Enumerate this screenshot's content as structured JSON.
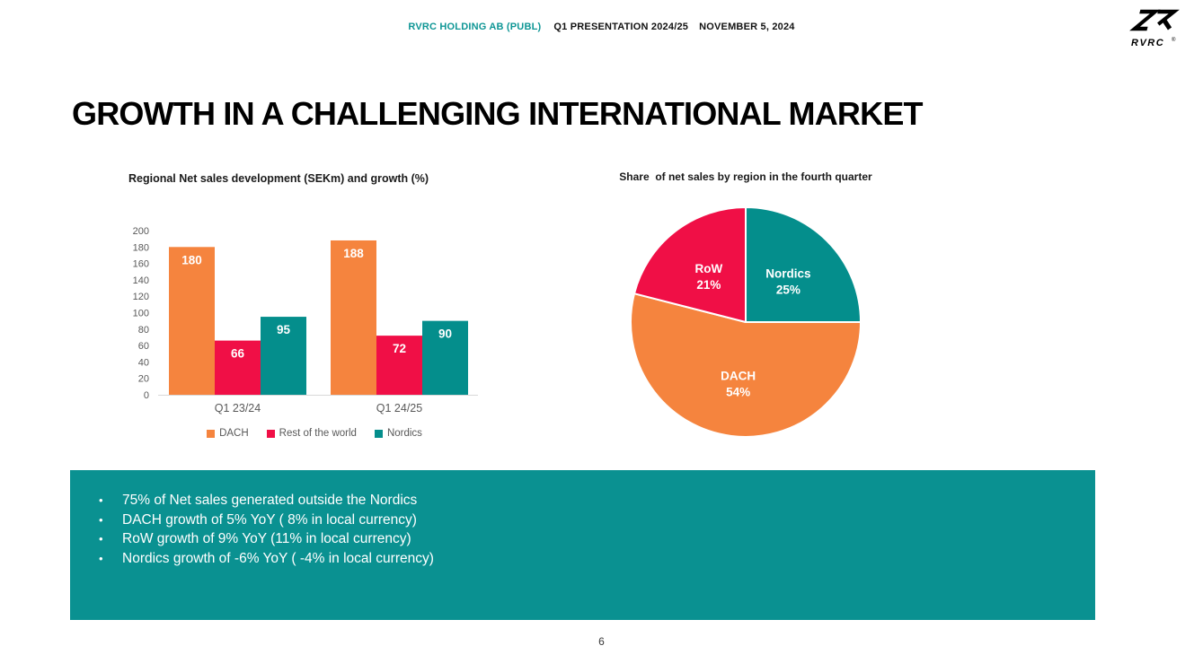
{
  "header": {
    "company": "RVRC HOLDING AB (PUBL)",
    "presentation": "Q1 PRESENTATION 2024/25",
    "date": "NOVEMBER 5, 2024"
  },
  "logo": {
    "brand": "RVRC",
    "registered": "®"
  },
  "slide": {
    "title": "GROWTH IN A CHALLENGING INTERNATIONAL MARKET",
    "page_number": "6"
  },
  "colors": {
    "orange": "#F5843E",
    "red": "#F00F46",
    "teal": "#048E8C",
    "box_teal": "#0A9191",
    "header_teal": "#0E9695",
    "axis_text": "#595959",
    "baseline": "#D9D9D9"
  },
  "chart_data": [
    {
      "type": "bar",
      "title": "Regional Net sales development (SEKm) and growth (%)",
      "categories": [
        "Q1 23/24",
        "Q1 24/25"
      ],
      "series": [
        {
          "name": "DACH",
          "color": "#F5843E",
          "values": [
            180,
            188
          ]
        },
        {
          "name": "Rest of the world",
          "color": "#F00F46",
          "values": [
            66,
            72
          ]
        },
        {
          "name": "Nordics",
          "color": "#048E8C",
          "values": [
            95,
            90
          ]
        }
      ],
      "ylabel": "",
      "xlabel": "",
      "ylim": [
        0,
        200
      ],
      "ytick_step": 20,
      "grid": false,
      "data_labels": true,
      "legend_position": "bottom"
    },
    {
      "type": "pie",
      "title": "Share  of net sales by region in the fourth quarter",
      "slices": [
        {
          "label": "Nordics",
          "value": 25,
          "pct_label": "25%",
          "color": "#048E8C"
        },
        {
          "label": "DACH",
          "value": 54,
          "pct_label": "54%",
          "color": "#F5843E"
        },
        {
          "label": "RoW",
          "value": 21,
          "pct_label": "21%",
          "color": "#F00F46"
        }
      ],
      "start_angle_deg": 0,
      "direction": "clockwise",
      "legend_position": "none"
    }
  ],
  "highlights": {
    "bullets": [
      "75% of Net sales generated outside the Nordics",
      "DACH growth of 5% YoY ( 8% in local currency)",
      "RoW growth of 9% YoY (11% in local currency)",
      "Nordics growth of -6% YoY ( -4% in local currency)"
    ]
  }
}
